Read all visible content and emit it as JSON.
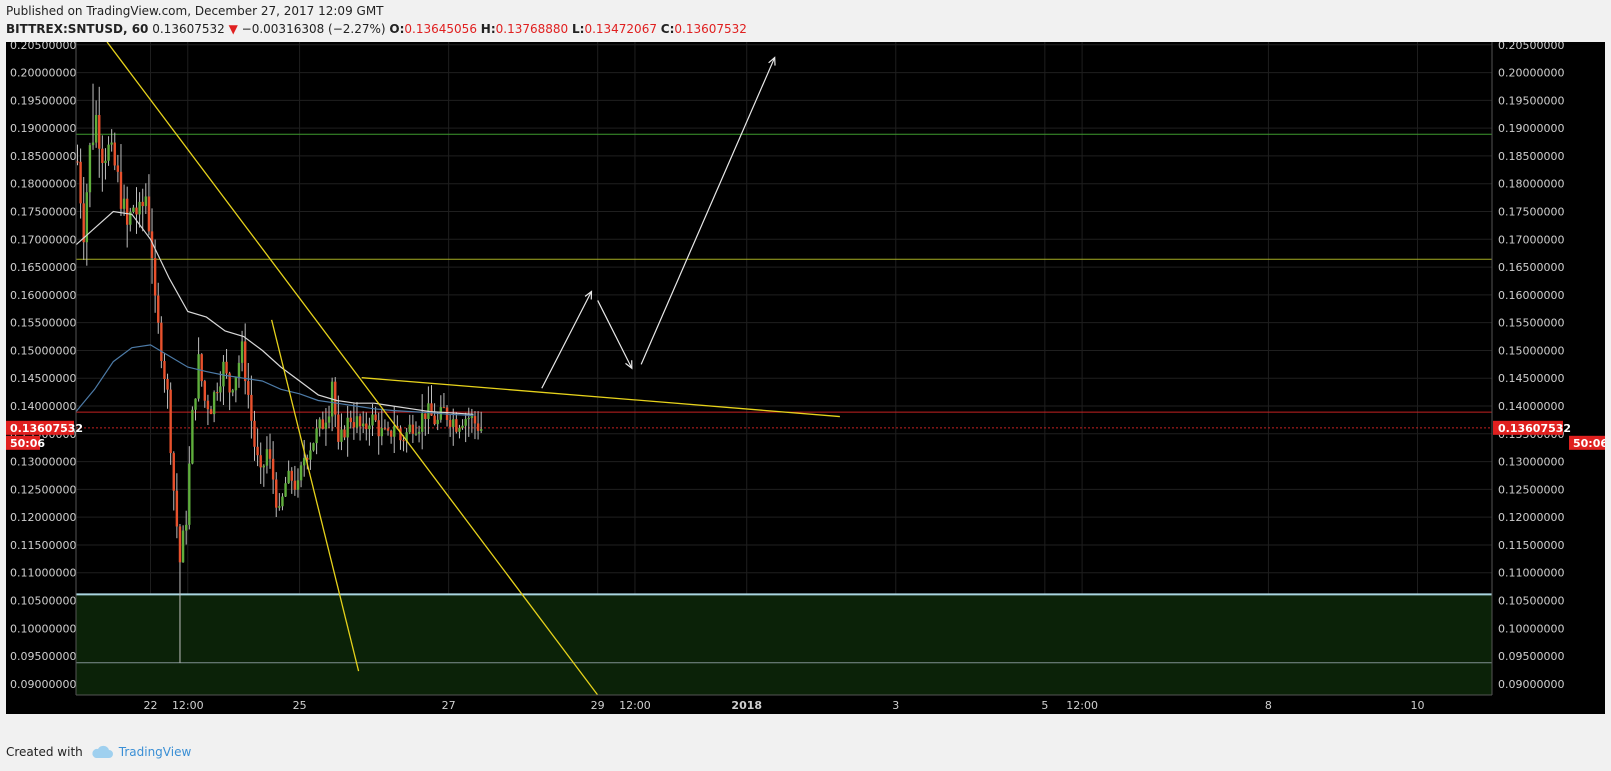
{
  "header": {
    "published": "Published on TradingView.com, December 27, 2017 12:09 GMT",
    "symbol": "BITTREX:SNTUSD, 60",
    "last": "0.13607532",
    "change_arrow": "▼",
    "change": "−0.00316308 (−2.27%)",
    "o_label": "O:",
    "o": "0.13645056",
    "h_label": "H:",
    "h": "0.13768880",
    "l_label": "L:",
    "l": "0.13472067",
    "c_label": "C:",
    "c": "0.13607532"
  },
  "footer": {
    "created_with": "Created with",
    "brand": "TradingView",
    "brand_icon": "cloud-icon"
  },
  "colors": {
    "background": "#000000",
    "up_candle": "#5fae3c",
    "down_candle": "#e8512d",
    "wick": "#bfbfbf",
    "trendline": "#e6d21b",
    "price_tag": "#e0201f",
    "demand_zone": "#0b2208"
  },
  "chart_data": {
    "type": "candlestick",
    "price_axis": {
      "ticks": [
        "0.20500000",
        "0.20000000",
        "0.19500000",
        "0.19000000",
        "0.18500000",
        "0.18000000",
        "0.17500000",
        "0.17000000",
        "0.16500000",
        "0.16000000",
        "0.15500000",
        "0.15000000",
        "0.14500000",
        "0.14000000",
        "0.13500000",
        "0.13000000",
        "0.12500000",
        "0.12000000",
        "0.11500000",
        "0.11000000",
        "0.10500000",
        "0.10000000",
        "0.09500000",
        "0.09000000"
      ],
      "ylim": [
        0.088,
        0.2055
      ]
    },
    "time_axis": {
      "ticks": [
        {
          "label": "22",
          "t": 24,
          "bold": false
        },
        {
          "label": "12:00",
          "t": 36,
          "bold": false
        },
        {
          "label": "25",
          "t": 72,
          "bold": false
        },
        {
          "label": "27",
          "t": 120,
          "bold": false
        },
        {
          "label": "29",
          "t": 168,
          "bold": false
        },
        {
          "label": "12:00",
          "t": 180,
          "bold": false
        },
        {
          "label": "2018",
          "t": 216,
          "bold": true
        },
        {
          "label": "3",
          "t": 264,
          "bold": false
        },
        {
          "label": "5",
          "t": 312,
          "bold": false
        },
        {
          "label": "12:00",
          "t": 324,
          "bold": false
        },
        {
          "label": "8",
          "t": 384,
          "bold": false
        },
        {
          "label": "10",
          "t": 432,
          "bold": false
        }
      ],
      "xlim": [
        0,
        456
      ],
      "unit": "hours since Dec 21 00:00 (60-minute bars)"
    },
    "current_price": {
      "label": "0.13607532",
      "value": 0.13607532,
      "countdown": "50:06"
    },
    "horizontal_lines": [
      {
        "name": "resistance-green",
        "value": 0.1889,
        "color": "#3e9a2e"
      },
      {
        "name": "support-olive",
        "value": 0.1664,
        "color": "#a6ad23"
      },
      {
        "name": "red-level",
        "value": 0.1389,
        "color": "#c42222"
      },
      {
        "name": "zone-top",
        "value": 0.1061,
        "color": "#a9d5df"
      },
      {
        "name": "zone-bottom",
        "value": 0.0938,
        "color": "#7f8f8f"
      }
    ],
    "zone": {
      "top": 0.1061,
      "bottom": 0.088
    },
    "candle_path": [
      [
        0,
        0.184
      ],
      [
        2,
        0.172
      ],
      [
        4,
        0.186
      ],
      [
        6,
        0.192
      ],
      [
        8,
        0.186
      ],
      [
        10,
        0.186
      ],
      [
        12,
        0.183
      ],
      [
        14,
        0.178
      ],
      [
        16,
        0.172
      ],
      [
        18,
        0.176
      ],
      [
        20,
        0.174
      ],
      [
        22,
        0.178
      ],
      [
        24,
        0.168
      ],
      [
        25,
        0.158
      ],
      [
        27,
        0.15
      ],
      [
        29,
        0.142
      ],
      [
        31,
        0.125
      ],
      [
        33,
        0.112
      ],
      [
        35,
        0.12
      ],
      [
        37,
        0.138
      ],
      [
        39,
        0.148
      ],
      [
        41,
        0.141
      ],
      [
        43,
        0.14
      ],
      [
        45,
        0.144
      ],
      [
        47,
        0.147
      ],
      [
        49,
        0.143
      ],
      [
        51,
        0.146
      ],
      [
        53,
        0.15
      ],
      [
        55,
        0.142
      ],
      [
        57,
        0.133
      ],
      [
        59,
        0.127
      ],
      [
        61,
        0.132
      ],
      [
        63,
        0.127
      ],
      [
        65,
        0.12
      ],
      [
        67,
        0.126
      ],
      [
        69,
        0.127
      ],
      [
        71,
        0.125
      ],
      [
        73,
        0.131
      ],
      [
        75,
        0.133
      ],
      [
        77,
        0.135
      ],
      [
        79,
        0.137
      ],
      [
        81,
        0.14
      ],
      [
        82,
        0.145
      ],
      [
        84,
        0.132
      ],
      [
        86,
        0.136
      ],
      [
        88,
        0.138
      ],
      [
        90,
        0.137
      ],
      [
        92,
        0.135
      ],
      [
        94,
        0.138
      ],
      [
        96,
        0.137
      ],
      [
        98,
        0.135
      ],
      [
        100,
        0.134
      ],
      [
        102,
        0.137
      ],
      [
        104,
        0.134
      ],
      [
        106,
        0.135
      ],
      [
        108,
        0.137
      ],
      [
        110,
        0.137
      ],
      [
        112,
        0.139
      ],
      [
        114,
        0.138
      ],
      [
        116,
        0.137
      ],
      [
        118,
        0.139
      ],
      [
        120,
        0.138
      ],
      [
        122,
        0.137
      ],
      [
        124,
        0.138
      ],
      [
        126,
        0.138
      ],
      [
        128,
        0.137
      ],
      [
        130,
        0.136
      ]
    ],
    "moving_averages": [
      {
        "name": "ma-white",
        "color": "#d8d8d8",
        "points": [
          [
            0,
            0.169
          ],
          [
            6,
            0.172
          ],
          [
            12,
            0.175
          ],
          [
            18,
            0.1745
          ],
          [
            24,
            0.17
          ],
          [
            30,
            0.163
          ],
          [
            36,
            0.157
          ],
          [
            42,
            0.156
          ],
          [
            48,
            0.1535
          ],
          [
            54,
            0.1525
          ],
          [
            60,
            0.15
          ],
          [
            66,
            0.147
          ],
          [
            72,
            0.1445
          ],
          [
            78,
            0.142
          ],
          [
            84,
            0.141
          ],
          [
            90,
            0.1405
          ],
          [
            96,
            0.1405
          ],
          [
            102,
            0.14
          ],
          [
            108,
            0.1395
          ],
          [
            114,
            0.139
          ],
          [
            120,
            0.1388
          ],
          [
            128,
            0.1385
          ]
        ]
      },
      {
        "name": "ma-blue",
        "color": "#4c7aa6",
        "points": [
          [
            0,
            0.139
          ],
          [
            6,
            0.143
          ],
          [
            12,
            0.148
          ],
          [
            18,
            0.1505
          ],
          [
            24,
            0.151
          ],
          [
            30,
            0.149
          ],
          [
            36,
            0.147
          ],
          [
            42,
            0.1462
          ],
          [
            48,
            0.1455
          ],
          [
            54,
            0.145
          ],
          [
            60,
            0.1445
          ],
          [
            66,
            0.143
          ],
          [
            72,
            0.1422
          ],
          [
            78,
            0.141
          ],
          [
            84,
            0.1405
          ],
          [
            90,
            0.14
          ],
          [
            96,
            0.1395
          ],
          [
            102,
            0.1392
          ],
          [
            108,
            0.139
          ],
          [
            114,
            0.1388
          ],
          [
            120,
            0.1385
          ],
          [
            128,
            0.1383
          ]
        ]
      }
    ],
    "trendlines": [
      {
        "name": "downtrend-long",
        "color": "#e6d21b",
        "from": [
          10,
          0.2055
        ],
        "to": [
          168,
          0.088
        ]
      },
      {
        "name": "steep-fall",
        "color": "#e6d21b",
        "from": [
          63,
          0.1555
        ],
        "to": [
          91,
          0.0923
        ]
      },
      {
        "name": "triangle-top",
        "color": "#e6d21b",
        "from": [
          92,
          0.1451
        ],
        "to": [
          246,
          0.1381
        ]
      }
    ],
    "projection_arrows": [
      {
        "name": "arrow-up-1",
        "from": [
          150,
          0.1432
        ],
        "to": [
          166,
          0.1606
        ]
      },
      {
        "name": "arrow-down",
        "from": [
          168,
          0.159
        ],
        "to": [
          179,
          0.1468
        ]
      },
      {
        "name": "arrow-up-2",
        "from": [
          182,
          0.1475
        ],
        "to": [
          225,
          0.2027
        ]
      }
    ]
  }
}
